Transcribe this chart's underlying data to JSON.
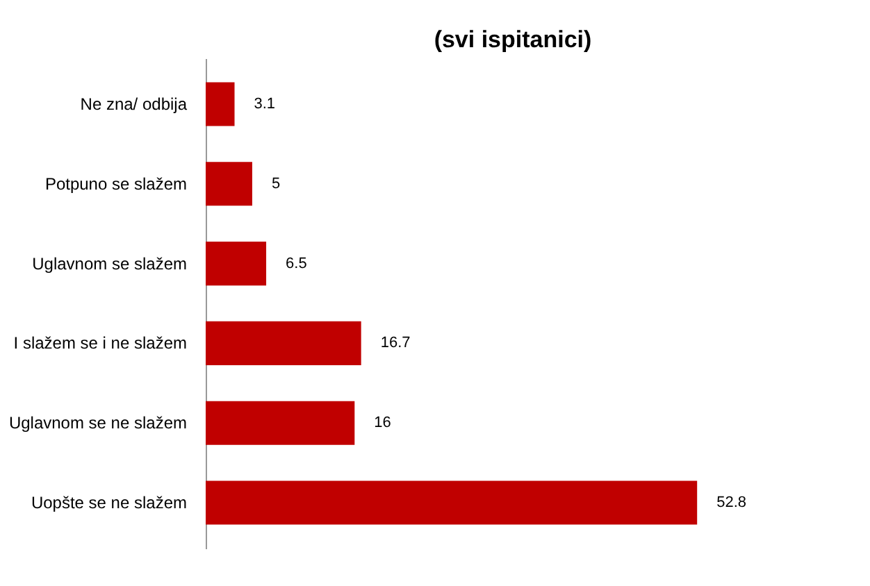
{
  "chart_data": {
    "type": "bar",
    "orientation": "horizontal",
    "title": "(svi ispitanici)",
    "categories": [
      "Ne zna/ odbija",
      "Potpuno se slažem",
      "Uglavnom se slažem",
      "I slažem se i ne slažem",
      "Uglavnom se ne slažem",
      "Uopšte se ne slažem"
    ],
    "values": [
      3.1,
      5,
      6.5,
      16.7,
      16,
      52.8
    ],
    "color": "#c00000",
    "data_labels": true
  }
}
